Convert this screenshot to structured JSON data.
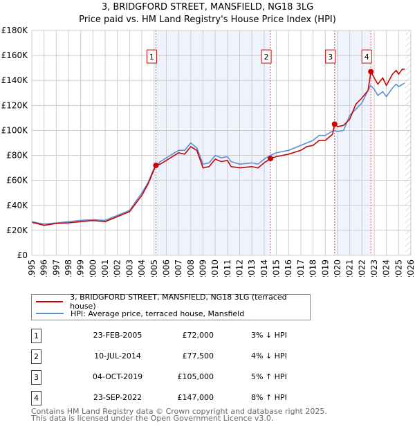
{
  "chart_data": {
    "type": "line",
    "title": "3, BRIDGFORD STREET, MANSFIELD, NG18 3LG",
    "subtitle": "Price paid vs. HM Land Registry's House Price Index (HPI)",
    "xlim": [
      1995,
      2026
    ],
    "ylim": [
      0,
      180000
    ],
    "yticks": [
      {
        "v": 0,
        "label": "£0"
      },
      {
        "v": 20000,
        "label": "£20K"
      },
      {
        "v": 40000,
        "label": "£40K"
      },
      {
        "v": 60000,
        "label": "£60K"
      },
      {
        "v": 80000,
        "label": "£80K"
      },
      {
        "v": 100000,
        "label": "£100K"
      },
      {
        "v": 120000,
        "label": "£120K"
      },
      {
        "v": 140000,
        "label": "£140K"
      },
      {
        "v": 160000,
        "label": "£160K"
      },
      {
        "v": 180000,
        "label": "£180K"
      }
    ],
    "xticks": [
      "1995",
      "1996",
      "1997",
      "1998",
      "1999",
      "2000",
      "2001",
      "2002",
      "2003",
      "2004",
      "2005",
      "2006",
      "2007",
      "2008",
      "2009",
      "2010",
      "2011",
      "2012",
      "2013",
      "2014",
      "2015",
      "2016",
      "2017",
      "2018",
      "2019",
      "2020",
      "2021",
      "2022",
      "2023",
      "2024",
      "2025",
      "2026"
    ],
    "grid": true,
    "colors": {
      "property": "#cc0000",
      "hpi": "#5b8fd6",
      "shade": "#eef3fc"
    },
    "shaded_ranges": [
      [
        2005.15,
        2014.52
      ],
      [
        2019.76,
        2022.73
      ]
    ],
    "hatch_from": 2025.55,
    "series": [
      {
        "name": "3, BRIDGFORD STREET, MANSFIELD, NG18 3LG (terraced house)",
        "color": "#cc0000",
        "x": [
          1995,
          1996,
          1997,
          1998,
          1999,
          2000,
          2001,
          2002,
          2003,
          2004,
          2004.5,
          2005.15,
          2005.5,
          2006,
          2007,
          2007.5,
          2008,
          2008.5,
          2009,
          2009.5,
          2010,
          2010.5,
          2011,
          2011.3,
          2012,
          2013,
          2013.5,
          2014,
          2014.52,
          2015,
          2016,
          2017,
          2017.5,
          2018,
          2018.5,
          2019,
          2019.6,
          2019.76,
          2020,
          2020.5,
          2021,
          2021.5,
          2022,
          2022.5,
          2022.73,
          2023,
          2023.3,
          2023.7,
          2024,
          2024.5,
          2024.8,
          2025,
          2025.3,
          2025.5
        ],
        "y": [
          26500,
          24000,
          25500,
          26000,
          27000,
          27800,
          27000,
          31000,
          35000,
          48000,
          57000,
          72000,
          73000,
          76000,
          82000,
          81000,
          87000,
          84000,
          70000,
          71000,
          77000,
          75000,
          76000,
          71000,
          70000,
          71000,
          70000,
          74000,
          77500,
          79000,
          81000,
          84000,
          87000,
          88000,
          92000,
          92000,
          97000,
          105000,
          103000,
          104000,
          109000,
          121000,
          126000,
          132000,
          147000,
          142000,
          137000,
          142000,
          136000,
          145000,
          148000,
          145000,
          149000,
          149000
        ]
      },
      {
        "name": "HPI: Average price, terraced house, Mansfield",
        "color": "#5b8fd6",
        "x": [
          1995,
          1996,
          1997,
          1998,
          1999,
          2000,
          2001,
          2002,
          2003,
          2004,
          2004.5,
          2005,
          2005.5,
          2006,
          2007,
          2007.5,
          2008,
          2008.5,
          2009,
          2009.5,
          2010,
          2010.5,
          2011,
          2011.3,
          2012,
          2013,
          2013.5,
          2014,
          2014.5,
          2015,
          2016,
          2017,
          2017.5,
          2018,
          2018.5,
          2019,
          2019.7,
          2020,
          2020.5,
          2021,
          2021.5,
          2022,
          2022.7,
          2023,
          2023.3,
          2023.7,
          2024,
          2024.5,
          2024.8,
          2025,
          2025.5
        ],
        "y": [
          27000,
          25000,
          26000,
          27000,
          28000,
          28500,
          28000,
          32000,
          36000,
          50000,
          58000,
          70000,
          75000,
          78000,
          84000,
          84000,
          90000,
          86000,
          73000,
          74000,
          80000,
          78000,
          79000,
          75000,
          73000,
          74000,
          73000,
          77000,
          80000,
          82000,
          84000,
          88000,
          90000,
          92000,
          96000,
          96000,
          100000,
          99000,
          100000,
          112000,
          117000,
          122000,
          136000,
          133000,
          128000,
          131000,
          127000,
          134000,
          137000,
          135000,
          138000
        ]
      }
    ],
    "sales": [
      {
        "n": "1",
        "x": 2005.15,
        "y": 72000
      },
      {
        "n": "2",
        "x": 2014.52,
        "y": 77500
      },
      {
        "n": "3",
        "x": 2019.76,
        "y": 105000
      },
      {
        "n": "4",
        "x": 2022.73,
        "y": 147000
      }
    ],
    "marker_label_y": 160000,
    "legend": {
      "placement": "below",
      "items": [
        "3, BRIDGFORD STREET, MANSFIELD, NG18 3LG (terraced house)",
        "HPI: Average price, terraced house, Mansfield"
      ]
    }
  },
  "table": [
    {
      "n": "1",
      "date": "23-FEB-2005",
      "price": "£72,000",
      "hpi": "3% ↓ HPI"
    },
    {
      "n": "2",
      "date": "10-JUL-2014",
      "price": "£77,500",
      "hpi": "4% ↓ HPI"
    },
    {
      "n": "3",
      "date": "04-OCT-2019",
      "price": "£105,000",
      "hpi": "5% ↑ HPI"
    },
    {
      "n": "4",
      "date": "23-SEP-2022",
      "price": "£147,000",
      "hpi": "8% ↑ HPI"
    }
  ],
  "footer": [
    "Contains HM Land Registry data © Crown copyright and database right 2025.",
    "This data is licensed under the Open Government Licence v3.0."
  ]
}
